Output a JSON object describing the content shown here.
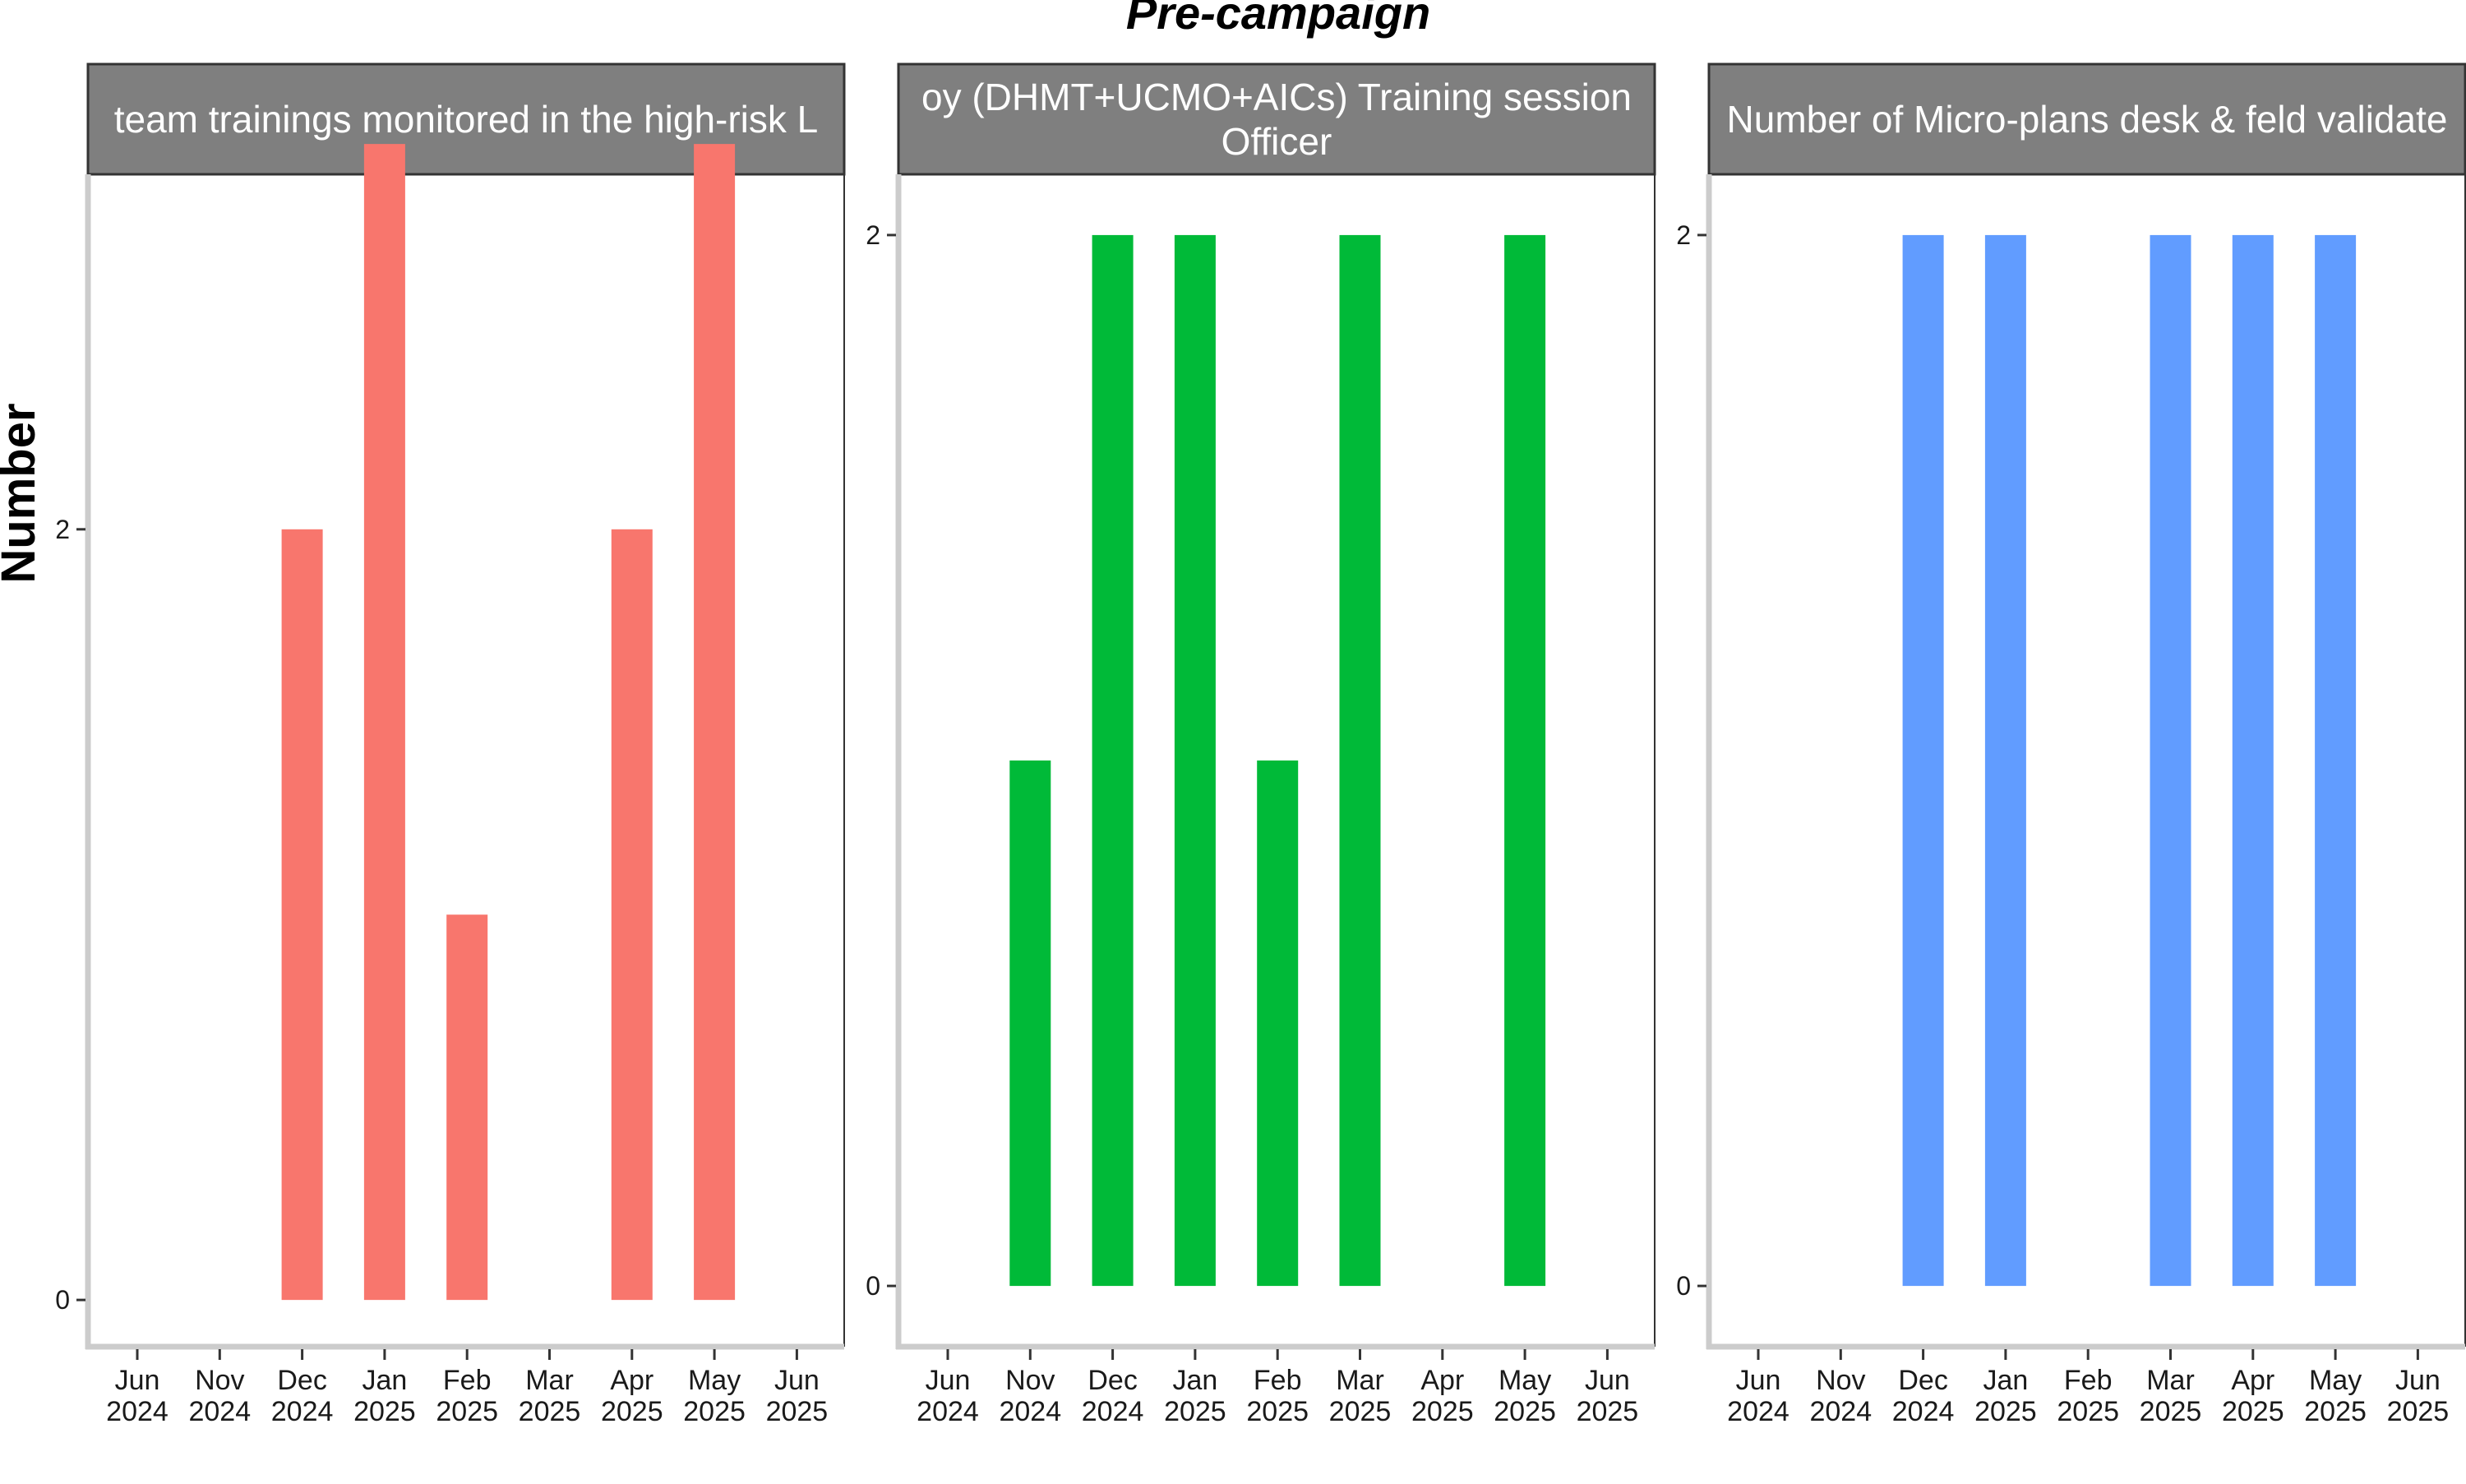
{
  "chart_data": {
    "type": "bar",
    "title": "Pre-campaign",
    "ylabel": "Number",
    "xlabel": "",
    "x_ticks": [
      [
        "Jun",
        "2024"
      ],
      [
        "Nov",
        "2024"
      ],
      [
        "Dec",
        "2024"
      ],
      [
        "Jan",
        "2025"
      ],
      [
        "Feb",
        "2025"
      ],
      [
        "Mar",
        "2025"
      ],
      [
        "Apr",
        "2025"
      ],
      [
        "May",
        "2025"
      ],
      [
        "Jun",
        "2025"
      ]
    ],
    "grid": false,
    "legend": "none",
    "panels": [
      {
        "strip_lines": [
          "team trainings monitored in the high-risk L"
        ],
        "color": "#F8766D",
        "ylim": [
          -0.1,
          2.9
        ],
        "yticks": [
          0,
          2
        ],
        "categories": [
          "Dec 2024",
          "Jan 2025",
          "Feb 2025",
          "Apr 2025",
          "May 2025"
        ],
        "values": [
          2,
          3,
          1,
          2,
          3
        ]
      },
      {
        "strip_lines": [
          "oy (DHMT+UCMO+AICs) Training session",
          "Officer"
        ],
        "color": "#00BA38",
        "ylim": [
          -0.1,
          2.1
        ],
        "yticks": [
          0,
          2
        ],
        "categories": [
          "Nov 2024",
          "Dec 2024",
          "Jan 2025",
          "Feb 2025",
          "Mar 2025",
          "May 2025"
        ],
        "values": [
          1,
          2,
          2,
          1,
          2,
          2
        ]
      },
      {
        "strip_lines": [
          "Number of Micro-plans desk & feld validate"
        ],
        "color": "#619CFF",
        "ylim": [
          -0.1,
          2.1
        ],
        "yticks": [
          0,
          2
        ],
        "categories": [
          "Dec 2024",
          "Jan 2025",
          "Mar 2025",
          "Apr 2025",
          "May 2025"
        ],
        "values": [
          2,
          2,
          2,
          2,
          2
        ]
      }
    ]
  }
}
